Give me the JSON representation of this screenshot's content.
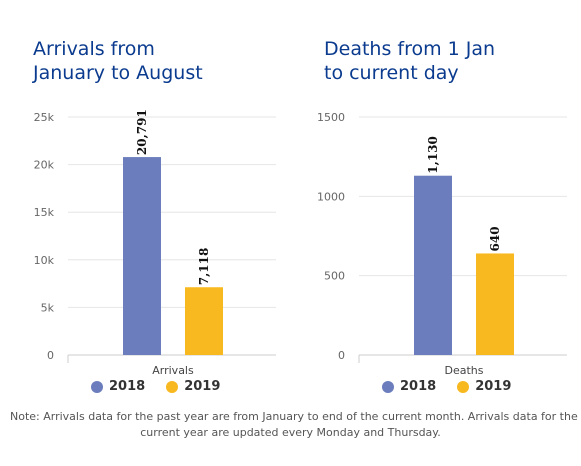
{
  "chart_data": [
    {
      "type": "bar",
      "title": [
        "Arrivals from",
        "January to August"
      ],
      "categories": [
        "Arrivals"
      ],
      "series": [
        {
          "name": "2018",
          "values": [
            20791
          ],
          "label": "20,791",
          "color": "#6b7dbc"
        },
        {
          "name": "2019",
          "values": [
            7118
          ],
          "label": "7,118",
          "color": "#f8b920"
        }
      ],
      "ylim": [
        0,
        25000
      ],
      "yticks": [
        0,
        5000,
        10000,
        15000,
        20000,
        25000
      ],
      "ytick_labels": [
        "0",
        "5k",
        "10k",
        "15k",
        "20k",
        "25k"
      ],
      "grid": true,
      "legend": "bottom"
    },
    {
      "type": "bar",
      "title": [
        "Deaths from 1 Jan",
        "to current day"
      ],
      "categories": [
        "Deaths"
      ],
      "series": [
        {
          "name": "2018",
          "values": [
            1130
          ],
          "label": "1,130",
          "color": "#6b7dbc"
        },
        {
          "name": "2019",
          "values": [
            640
          ],
          "label": "640",
          "color": "#f8b920"
        }
      ],
      "ylim": [
        0,
        1500
      ],
      "yticks": [
        0,
        500,
        1000,
        1500
      ],
      "ytick_labels": [
        "0",
        "500",
        "1000",
        "1500"
      ],
      "grid": true,
      "legend": "bottom"
    }
  ],
  "note": [
    "Note: Arrivals data for the past year are from January to end of the current month. Arrivals data for the",
    "current year are updated every Monday and Thursday."
  ]
}
